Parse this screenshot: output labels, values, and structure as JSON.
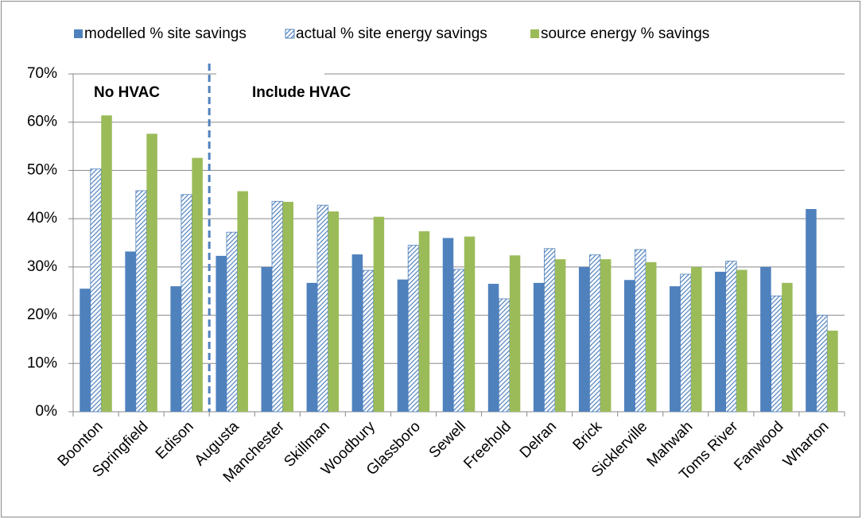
{
  "chart_data": {
    "type": "bar",
    "categories": [
      "Boonton",
      "Springfield",
      "Edison",
      "Augusta",
      "Manchester",
      "Skillman",
      "Woodbury",
      "Glassboro",
      "Sewell",
      "Freehold",
      "Delran",
      "Brick",
      "Sicklerville",
      "Mahwah",
      "Toms River",
      "Fanwood",
      "Wharton"
    ],
    "series": [
      {
        "name": "modelled % site savings",
        "color": "#4f81bd",
        "values": [
          25.5,
          33.2,
          26,
          32.3,
          30,
          26.7,
          32.6,
          27.4,
          36,
          26.5,
          26.7,
          30,
          27.3,
          26,
          29,
          30,
          42
        ]
      },
      {
        "name": "actual % site energy savings",
        "color": "#4f81bd",
        "pattern": "hatch",
        "values": [
          50.3,
          45.8,
          45,
          37.2,
          43.6,
          42.8,
          29.3,
          34.5,
          29.5,
          23.4,
          33.8,
          32.5,
          33.6,
          28.5,
          31.2,
          24,
          20
        ]
      },
      {
        "name": "source energy % savings",
        "color": "#9bbb59",
        "values": [
          61.4,
          57.6,
          52.6,
          45.7,
          43.5,
          41.5,
          40.4,
          37.4,
          36.3,
          32.4,
          31.6,
          31.6,
          31,
          30,
          29.4,
          26.7,
          16.8
        ]
      }
    ],
    "annotations": [
      "No HVAC",
      "Include HVAC"
    ],
    "ylim": [
      0,
      70
    ],
    "yticks": [
      {
        "value": 0,
        "label": "0%"
      },
      {
        "value": 10,
        "label": "10%"
      },
      {
        "value": 20,
        "label": "20%"
      },
      {
        "value": 30,
        "label": "30%"
      },
      {
        "value": 40,
        "label": "40%"
      },
      {
        "value": 50,
        "label": "50%"
      },
      {
        "value": 60,
        "label": "60%"
      },
      {
        "value": 70,
        "label": "70%"
      }
    ],
    "grid": true,
    "legend": "top"
  }
}
